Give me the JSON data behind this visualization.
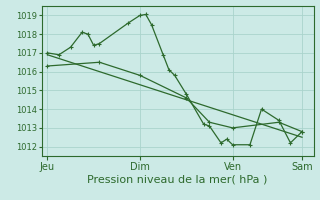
{
  "background_color": "#cceae6",
  "grid_color": "#aad4cc",
  "line_color": "#2d6a2d",
  "ylabel_ticks": [
    1012,
    1013,
    1014,
    1015,
    1016,
    1017,
    1018,
    1019
  ],
  "xlabel": "Pression niveau de la mer( hPa )",
  "x_tick_labels": [
    "Jeu",
    "Dim",
    "Ven",
    "Sam"
  ],
  "x_tick_positions": [
    0,
    8,
    16,
    22
  ],
  "series1": [
    [
      0,
      1017.0
    ],
    [
      1,
      1016.9
    ],
    [
      2,
      1017.3
    ],
    [
      3,
      1018.1
    ],
    [
      3.5,
      1018.0
    ],
    [
      4,
      1017.4
    ],
    [
      4.5,
      1017.5
    ],
    [
      7,
      1018.6
    ],
    [
      8,
      1019.0
    ],
    [
      8.5,
      1019.05
    ],
    [
      9,
      1018.5
    ],
    [
      10,
      1016.9
    ],
    [
      10.5,
      1016.1
    ],
    [
      11,
      1015.8
    ],
    [
      12,
      1014.8
    ],
    [
      13.5,
      1013.2
    ],
    [
      14,
      1013.1
    ],
    [
      15,
      1012.2
    ],
    [
      15.5,
      1012.4
    ],
    [
      16,
      1012.1
    ],
    [
      17.5,
      1012.1
    ],
    [
      18.5,
      1014.0
    ],
    [
      20,
      1013.4
    ],
    [
      21,
      1012.2
    ],
    [
      22,
      1012.8
    ]
  ],
  "series2": [
    [
      0,
      1016.3
    ],
    [
      4.5,
      1016.5
    ],
    [
      8,
      1015.8
    ],
    [
      12,
      1014.6
    ],
    [
      14,
      1013.3
    ],
    [
      16,
      1013.0
    ],
    [
      20,
      1013.3
    ],
    [
      22,
      1012.8
    ]
  ],
  "series3": [
    [
      0,
      1016.9
    ],
    [
      22,
      1012.5
    ]
  ],
  "xlim": [
    -0.5,
    23.0
  ],
  "ylim": [
    1011.5,
    1019.5
  ],
  "yticklabel_fontsize": 6,
  "xticklabel_fontsize": 7,
  "xlabel_fontsize": 8
}
